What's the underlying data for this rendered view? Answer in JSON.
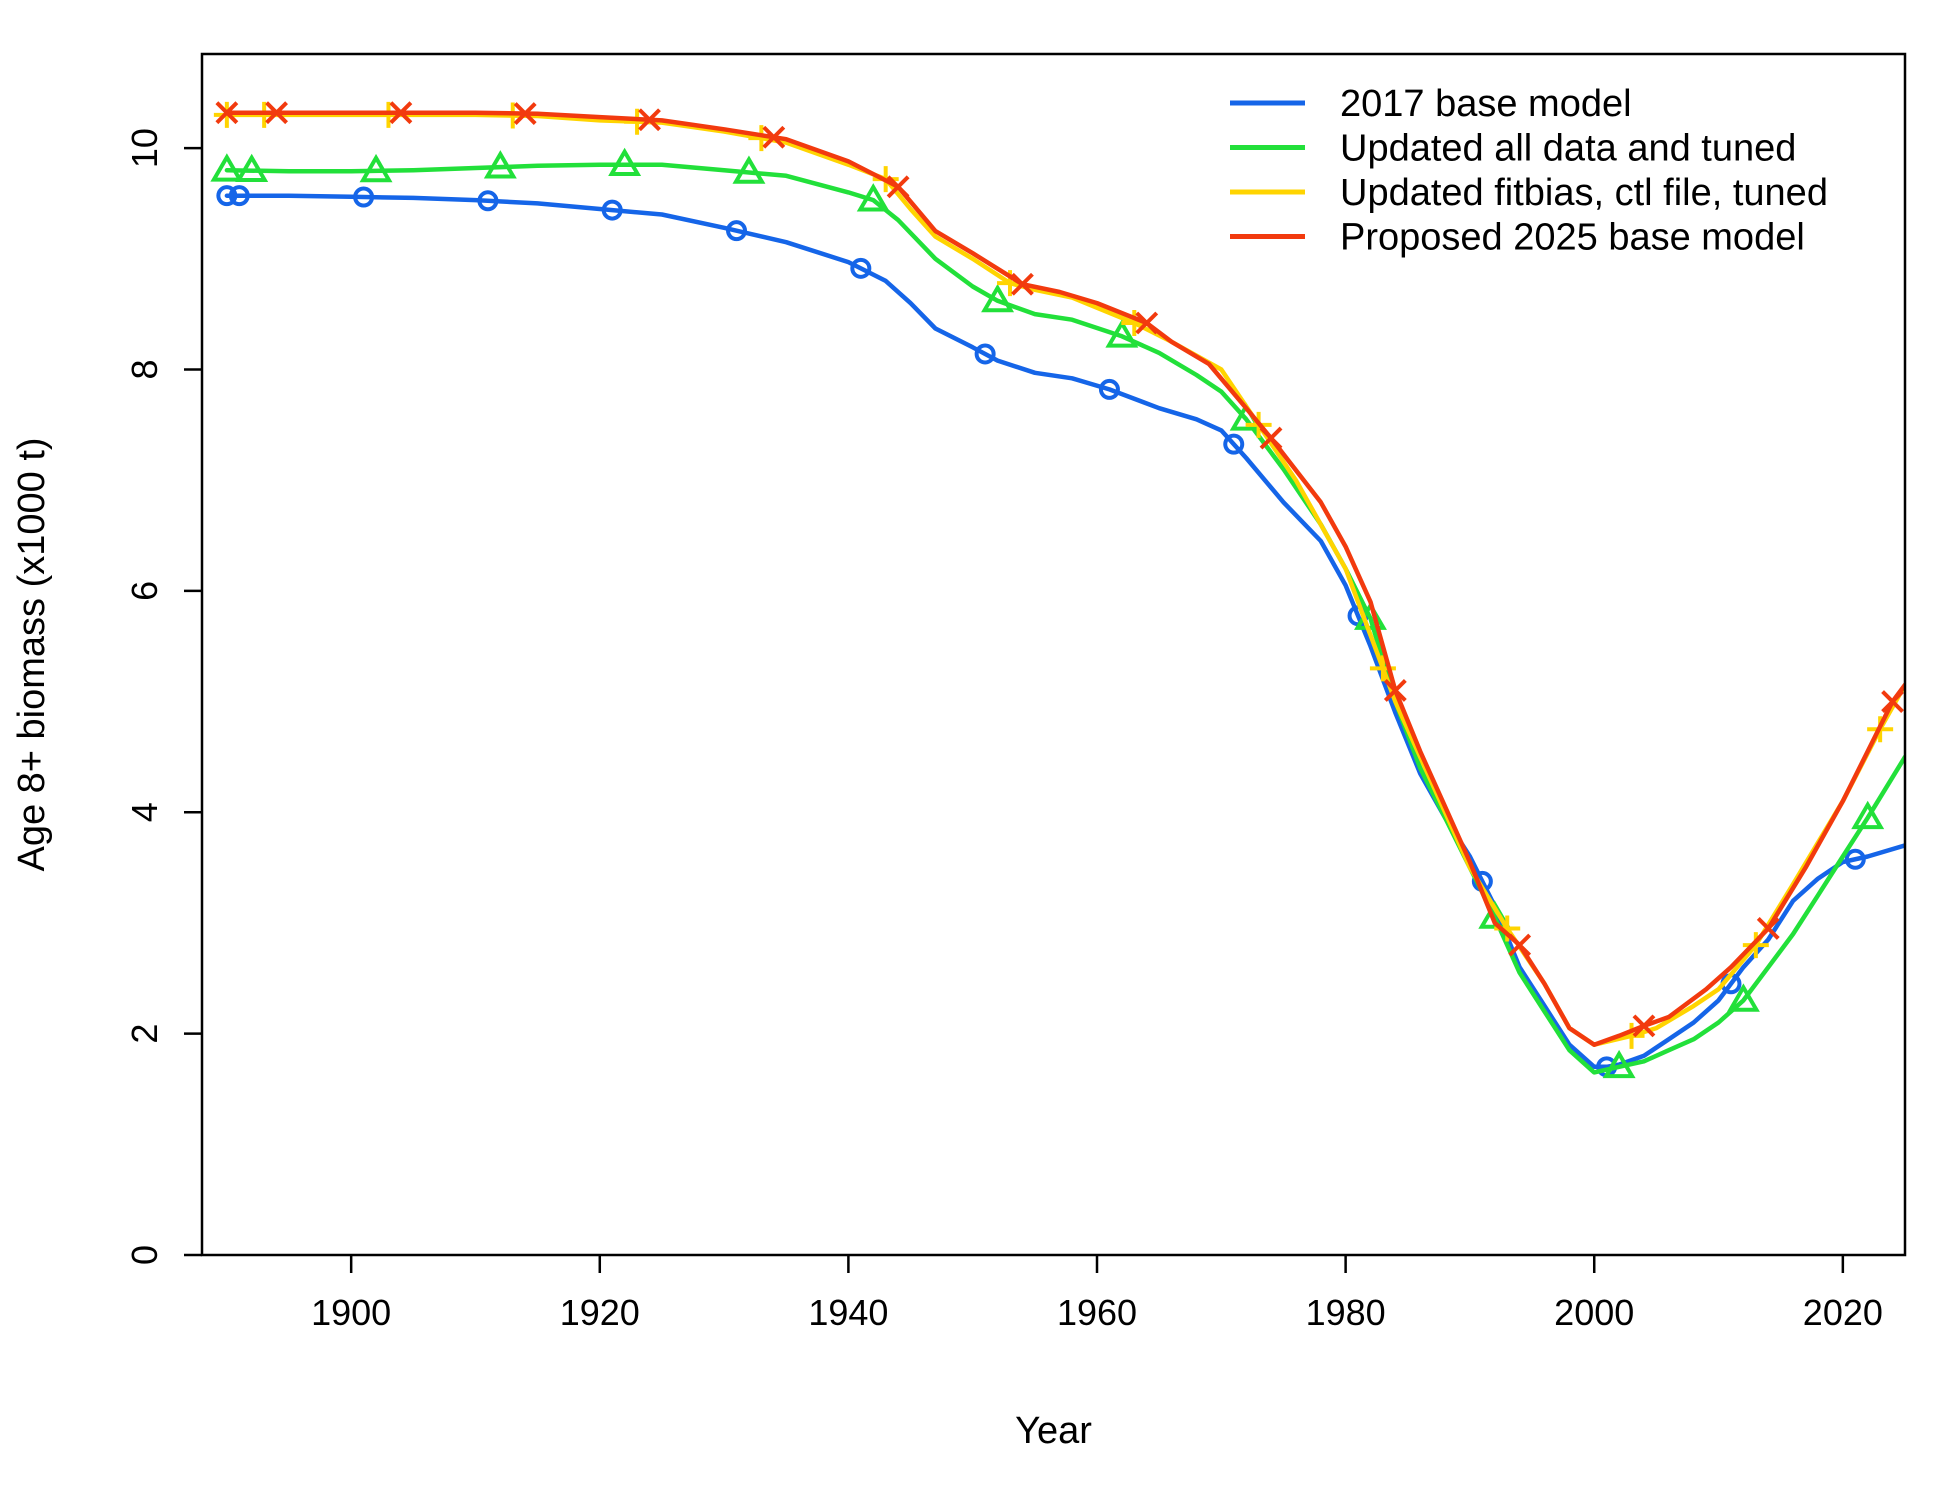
{
  "chart_data": {
    "type": "line",
    "title": "",
    "xlabel": "Year",
    "ylabel": "Age 8+ biomass (x1000 t)",
    "xlim": [
      1888,
      2025
    ],
    "ylim": [
      0,
      10.85
    ],
    "x_ticks": [
      1900,
      1920,
      1940,
      1960,
      1980,
      2000,
      2020
    ],
    "y_ticks": [
      0,
      2,
      4,
      6,
      8,
      10
    ],
    "grid": false,
    "legend_position": "top-right",
    "series": [
      {
        "name": "2017 base model",
        "color": "#1565e8",
        "marker": "circle",
        "marker_x": [
          1890,
          1891,
          1901,
          1911,
          1921,
          1931,
          1941,
          1951,
          1961,
          1971,
          1981,
          1991,
          2001,
          2011,
          2021
        ],
        "x": [
          1890,
          1895,
          1900,
          1905,
          1910,
          1915,
          1920,
          1925,
          1930,
          1935,
          1940,
          1943,
          1945,
          1947,
          1950,
          1952,
          1955,
          1958,
          1961,
          1965,
          1968,
          1970,
          1972,
          1975,
          1978,
          1980,
          1982,
          1984,
          1986,
          1988,
          1990,
          1992,
          1994,
          1996,
          1998,
          2000,
          2001,
          2002,
          2004,
          2006,
          2008,
          2010,
          2012,
          2014,
          2016,
          2018,
          2020,
          2022,
          2025
        ],
        "y": [
          9.57,
          9.57,
          9.56,
          9.55,
          9.53,
          9.5,
          9.45,
          9.4,
          9.28,
          9.15,
          8.97,
          8.8,
          8.6,
          8.37,
          8.2,
          8.08,
          7.97,
          7.92,
          7.82,
          7.65,
          7.55,
          7.45,
          7.2,
          6.8,
          6.45,
          6.05,
          5.5,
          4.9,
          4.35,
          3.95,
          3.6,
          3.15,
          2.6,
          2.25,
          1.9,
          1.7,
          1.7,
          1.72,
          1.8,
          1.95,
          2.1,
          2.3,
          2.6,
          2.85,
          3.2,
          3.4,
          3.55,
          3.6,
          3.7
        ]
      },
      {
        "name": "Updated all data and tuned",
        "color": "#22e03a",
        "marker": "triangle",
        "marker_x": [
          1890,
          1892,
          1902,
          1912,
          1922,
          1932,
          1942,
          1952,
          1962,
          1972,
          1982,
          1992,
          2002,
          2012,
          2022
        ],
        "x": [
          1890,
          1895,
          1900,
          1905,
          1910,
          1915,
          1920,
          1925,
          1930,
          1935,
          1940,
          1942,
          1944,
          1947,
          1950,
          1952,
          1955,
          1958,
          1962,
          1965,
          1968,
          1970,
          1972,
          1975,
          1978,
          1980,
          1982,
          1984,
          1986,
          1988,
          1990,
          1992,
          1994,
          1996,
          1998,
          2000,
          2002,
          2004,
          2006,
          2008,
          2010,
          2012,
          2014,
          2016,
          2018,
          2020,
          2022,
          2025
        ],
        "y": [
          9.8,
          9.79,
          9.79,
          9.8,
          9.82,
          9.84,
          9.85,
          9.85,
          9.8,
          9.75,
          9.6,
          9.53,
          9.35,
          9.0,
          8.75,
          8.62,
          8.5,
          8.45,
          8.3,
          8.15,
          7.95,
          7.8,
          7.55,
          7.1,
          6.6,
          6.2,
          5.75,
          5.0,
          4.4,
          3.95,
          3.5,
          3.05,
          2.55,
          2.2,
          1.85,
          1.65,
          1.7,
          1.75,
          1.85,
          1.95,
          2.1,
          2.3,
          2.6,
          2.9,
          3.25,
          3.6,
          3.95,
          4.5
        ]
      },
      {
        "name": "Updated fitbias, ctl file, tuned",
        "color": "#ffd400",
        "marker": "plus",
        "marker_x": [
          1890,
          1893,
          1903,
          1913,
          1923,
          1933,
          1943,
          1953,
          1963,
          1973,
          1983,
          1993,
          2003,
          2013,
          2023
        ],
        "x": [
          1890,
          1895,
          1900,
          1905,
          1910,
          1915,
          1920,
          1925,
          1930,
          1935,
          1940,
          1943,
          1945,
          1947,
          1950,
          1953,
          1955,
          1958,
          1963,
          1966,
          1970,
          1973,
          1976,
          1980,
          1982,
          1984,
          1986,
          1990,
          1993,
          1996,
          1998,
          2000,
          2003,
          2005,
          2008,
          2010,
          2013,
          2016,
          2020,
          2023,
          2025
        ],
        "y": [
          10.3,
          10.3,
          10.3,
          10.3,
          10.3,
          10.29,
          10.25,
          10.23,
          10.15,
          10.05,
          9.85,
          9.72,
          9.45,
          9.2,
          9.0,
          8.78,
          8.72,
          8.65,
          8.42,
          8.25,
          8.0,
          7.5,
          7.0,
          6.2,
          5.6,
          5.0,
          4.5,
          3.5,
          2.95,
          2.45,
          2.05,
          1.9,
          1.98,
          2.05,
          2.25,
          2.4,
          2.8,
          3.35,
          4.1,
          4.75,
          5.15
        ]
      },
      {
        "name": "Proposed 2025 base model",
        "color": "#f23a0e",
        "marker": "x",
        "marker_x": [
          1890,
          1894,
          1904,
          1914,
          1924,
          1934,
          1944,
          1954,
          1964,
          1974,
          1984,
          1994,
          2004,
          2014,
          2024
        ],
        "x": [
          1890,
          1895,
          1900,
          1905,
          1910,
          1915,
          1920,
          1925,
          1930,
          1935,
          1940,
          1944,
          1947,
          1950,
          1954,
          1957,
          1960,
          1964,
          1966,
          1969,
          1972,
          1974,
          1978,
          1980,
          1982,
          1984,
          1986,
          1988,
          1990,
          1992,
          1994,
          1996,
          1998,
          2000,
          2002,
          2004,
          2006,
          2009,
          2011,
          2014,
          2017,
          2020,
          2022,
          2024,
          2025
        ],
        "y": [
          10.32,
          10.32,
          10.32,
          10.32,
          10.32,
          10.31,
          10.28,
          10.25,
          10.17,
          10.08,
          9.88,
          9.65,
          9.25,
          9.05,
          8.77,
          8.7,
          8.6,
          8.42,
          8.25,
          8.05,
          7.65,
          7.38,
          6.8,
          6.4,
          5.9,
          5.1,
          4.55,
          4.05,
          3.55,
          3.0,
          2.8,
          2.45,
          2.05,
          1.9,
          1.98,
          2.07,
          2.15,
          2.4,
          2.6,
          2.95,
          3.5,
          4.1,
          4.55,
          5.0,
          5.15
        ]
      }
    ]
  }
}
